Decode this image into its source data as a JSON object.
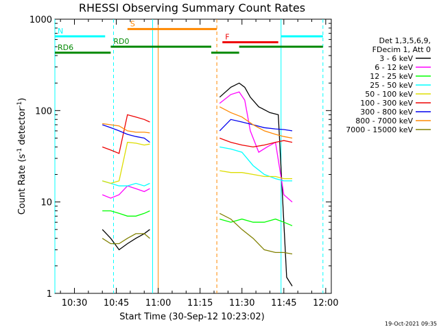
{
  "chart_data": {
    "type": "line",
    "title": "RHESSI Observing Summary Count Rates",
    "xlabel": "Start Time (30-Sep-12 10:23:02)",
    "ylabel": "Count Rate (s⁻¹ detector⁻¹)",
    "ylabel_parts": {
      "main": "Count Rate (s",
      "sup1": "-1",
      "mid": " detector",
      "sup2": "-1",
      "end": ")"
    },
    "yscale": "log",
    "ylim": [
      1,
      1000
    ],
    "xlim": [
      "10:23",
      "12:02"
    ],
    "x_ticks": [
      "10:30",
      "10:45",
      "11:00",
      "11:15",
      "11:30",
      "11:45",
      "12:00"
    ],
    "y_ticks": [
      "1",
      "10",
      "100",
      "1000"
    ],
    "legend": {
      "placement": "right",
      "header": [
        "Det 1,3,5,6,9,",
        "FDecim 1, Att 0"
      ],
      "entries": [
        {
          "label": "3 - 6 keV",
          "color": "#000000"
        },
        {
          "label": "6 - 12 keV",
          "color": "#ff00ff"
        },
        {
          "label": "12 - 25 keV",
          "color": "#00ff00"
        },
        {
          "label": "25 - 50 keV",
          "color": "#00ffff"
        },
        {
          "label": "50 - 100 keV",
          "color": "#dddd00"
        },
        {
          "label": "100 - 300 keV",
          "color": "#ee0000"
        },
        {
          "label": "300 - 800 keV",
          "color": "#0000ee"
        },
        {
          "label": "800 - 7000 keV",
          "color": "#ff8800"
        },
        {
          "label": "7000 - 15000 keV",
          "color": "#808000"
        }
      ]
    },
    "flag_bars": [
      {
        "label": "N",
        "color": "#00ffff",
        "level": 650,
        "segments": [
          [
            "10:23",
            "10:41"
          ],
          [
            "11:44",
            "11:59"
          ]
        ]
      },
      {
        "label": "S",
        "color": "#ff8800",
        "level": 780,
        "segments": [
          [
            "10:49",
            "11:21"
          ]
        ]
      },
      {
        "label": "F",
        "color": "#ee0000",
        "level": 560,
        "segments": [
          [
            "11:23",
            "11:43"
          ]
        ]
      },
      {
        "label": "RD0",
        "color": "#008800",
        "level": 500,
        "segments": [
          [
            "10:43",
            "11:19"
          ],
          [
            "11:29",
            "11:59"
          ]
        ]
      },
      {
        "label": "RD6",
        "color": "#008800",
        "level": 430,
        "segments": [
          [
            "10:23",
            "10:43"
          ],
          [
            "11:19",
            "11:29"
          ]
        ]
      }
    ],
    "markers": [
      {
        "time": "10:23",
        "color": "#00ffff",
        "style": "solid"
      },
      {
        "time": "10:44",
        "color": "#00ffff",
        "style": "dashed"
      },
      {
        "time": "10:58",
        "color": "#00ffff",
        "style": "solid"
      },
      {
        "time": "11:00",
        "color": "#ff8800",
        "style": "solid"
      },
      {
        "time": "11:21",
        "color": "#ff8800",
        "style": "dashed"
      },
      {
        "time": "11:44",
        "color": "#00ffff",
        "solid_note": "",
        "style": "solid"
      },
      {
        "time": "11:59",
        "color": "#00ffff",
        "style": "dashed"
      }
    ],
    "series": [
      {
        "name": "3 - 6 keV",
        "color": "#000000",
        "segments": [
          {
            "x": [
              "10:40",
              "10:43",
              "10:46",
              "10:49",
              "10:52",
              "10:55",
              "10:57"
            ],
            "y": [
              5,
              4,
              3,
              3.5,
              4,
              4.5,
              5
            ]
          },
          {
            "x": [
              "11:22",
              "11:26",
              "11:29",
              "11:31",
              "11:33",
              "11:36",
              "11:40",
              "11:43",
              "11:46",
              "11:48"
            ],
            "y": [
              140,
              180,
              200,
              180,
              140,
              110,
              95,
              90,
              1.5,
              1.2
            ]
          }
        ]
      },
      {
        "name": "6 - 12 keV",
        "color": "#ff00ff",
        "segments": [
          {
            "x": [
              "10:40",
              "10:43",
              "10:46",
              "10:49",
              "10:52",
              "10:55",
              "10:57"
            ],
            "y": [
              12,
              11,
              12,
              15,
              14,
              13,
              14
            ]
          },
          {
            "x": [
              "11:22",
              "11:26",
              "11:29",
              "11:31",
              "11:33",
              "11:36",
              "11:39",
              "11:42",
              "11:45",
              "11:48"
            ],
            "y": [
              120,
              150,
              160,
              130,
              60,
              35,
              40,
              45,
              12,
              10
            ]
          }
        ]
      },
      {
        "name": "12 - 25 keV",
        "color": "#00ff00",
        "segments": [
          {
            "x": [
              "10:40",
              "10:43",
              "10:46",
              "10:49",
              "10:52",
              "10:55",
              "10:57"
            ],
            "y": [
              8,
              8,
              7.5,
              7,
              7,
              7.5,
              8
            ]
          },
          {
            "x": [
              "11:22",
              "11:26",
              "11:30",
              "11:34",
              "11:38",
              "11:42",
              "11:45",
              "11:48"
            ],
            "y": [
              6.5,
              6,
              6.5,
              6,
              6,
              6.5,
              6,
              5.5
            ]
          }
        ]
      },
      {
        "name": "25 - 50 keV",
        "color": "#00ffff",
        "segments": [
          {
            "x": [
              "10:40",
              "10:43",
              "10:46",
              "10:49",
              "10:52",
              "10:55",
              "10:57"
            ],
            "y": [
              17,
              16,
              15,
              15,
              16,
              15,
              16
            ]
          },
          {
            "x": [
              "11:22",
              "11:26",
              "11:30",
              "11:34",
              "11:38",
              "11:42",
              "11:45",
              "11:48"
            ],
            "y": [
              40,
              38,
              35,
              25,
              20,
              18,
              17,
              17
            ]
          }
        ]
      },
      {
        "name": "50 - 100 keV",
        "color": "#dddd00",
        "segments": [
          {
            "x": [
              "10:40",
              "10:43",
              "10:46",
              "10:49",
              "10:52",
              "10:55",
              "10:57"
            ],
            "y": [
              17,
              16,
              17,
              45,
              44,
              42,
              43
            ]
          },
          {
            "x": [
              "11:22",
              "11:26",
              "11:30",
              "11:34",
              "11:38",
              "11:42",
              "11:45",
              "11:48"
            ],
            "y": [
              22,
              21,
              21,
              20,
              19,
              19,
              18,
              18
            ]
          }
        ]
      },
      {
        "name": "100 - 300 keV",
        "color": "#ee0000",
        "segments": [
          {
            "x": [
              "10:40",
              "10:43",
              "10:46",
              "10:49",
              "10:52",
              "10:55",
              "10:57"
            ],
            "y": [
              40,
              37,
              34,
              90,
              85,
              80,
              75
            ]
          },
          {
            "x": [
              "11:22",
              "11:26",
              "11:30",
              "11:34",
              "11:38",
              "11:42",
              "11:45",
              "11:48"
            ],
            "y": [
              50,
              45,
              42,
              40,
              42,
              45,
              47,
              45
            ]
          }
        ]
      },
      {
        "name": "300 - 800 keV",
        "color": "#0000ee",
        "segments": [
          {
            "x": [
              "10:40",
              "10:43",
              "10:46",
              "10:49",
              "10:52",
              "10:55",
              "10:57"
            ],
            "y": [
              70,
              65,
              60,
              55,
              52,
              50,
              45
            ]
          },
          {
            "x": [
              "11:22",
              "11:26",
              "11:30",
              "11:34",
              "11:38",
              "11:42",
              "11:45",
              "11:48"
            ],
            "y": [
              60,
              80,
              75,
              70,
              65,
              63,
              62,
              60
            ]
          }
        ]
      },
      {
        "name": "800 - 7000 keV",
        "color": "#ff8800",
        "segments": [
          {
            "x": [
              "10:40",
              "10:43",
              "10:46",
              "10:49",
              "10:52",
              "10:55",
              "10:57"
            ],
            "y": [
              72,
              70,
              68,
              60,
              58,
              58,
              57
            ]
          },
          {
            "x": [
              "11:22",
              "11:26",
              "11:30",
              "11:34",
              "11:38",
              "11:42",
              "11:45",
              "11:48"
            ],
            "y": [
              110,
              95,
              85,
              70,
              60,
              55,
              52,
              50
            ]
          }
        ]
      },
      {
        "name": "7000 - 15000 keV",
        "color": "#808000",
        "segments": [
          {
            "x": [
              "10:40",
              "10:43",
              "10:46",
              "10:49",
              "10:52",
              "10:55",
              "10:57"
            ],
            "y": [
              4,
              3.5,
              3.5,
              4,
              4.5,
              4.5,
              4
            ]
          },
          {
            "x": [
              "11:22",
              "11:26",
              "11:30",
              "11:34",
              "11:38",
              "11:42",
              "11:45",
              "11:48"
            ],
            "y": [
              7.5,
              6.5,
              5,
              4,
              3,
              2.8,
              2.8,
              2.7
            ]
          }
        ]
      }
    ]
  },
  "footer": {
    "timestamp": "19-Oct-2021 09:35"
  }
}
